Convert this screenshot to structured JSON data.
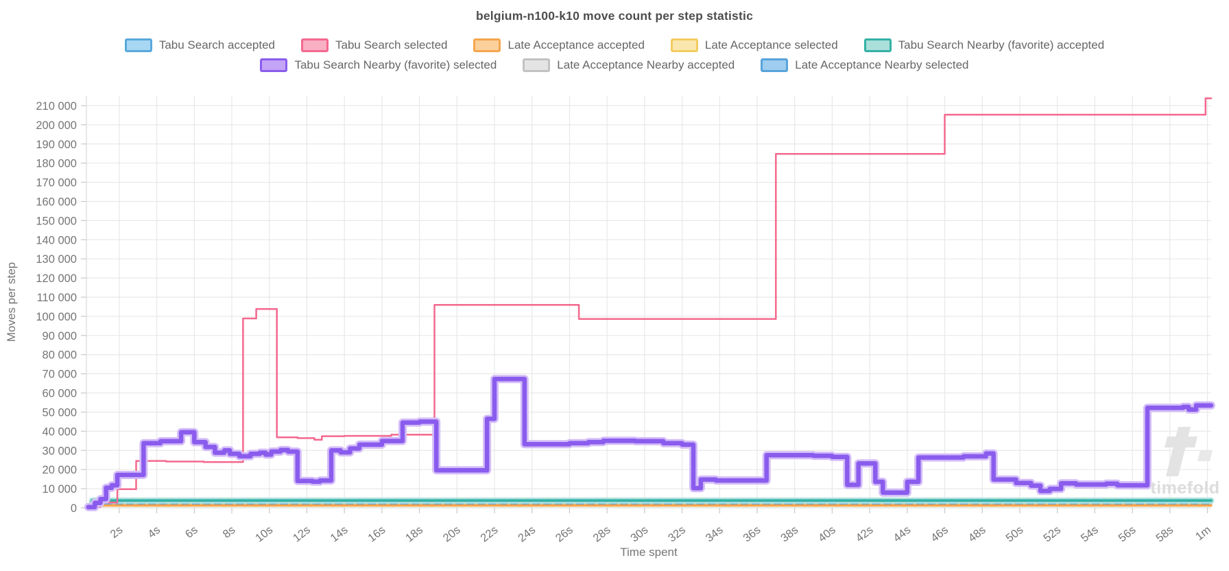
{
  "title": "belgium-n100-k10 move count per step statistic",
  "watermark": {
    "label": "timefold"
  },
  "legend": {
    "rows": [
      [
        0,
        1,
        2,
        3,
        4
      ],
      [
        5,
        6,
        7
      ]
    ]
  },
  "chart_data": {
    "type": "line",
    "subtype": "step-after",
    "title": "belgium-n100-k10 move count per step statistic",
    "xlabel": "Time spent",
    "ylabel": "Moves per step",
    "x_domain": [
      0.25,
      60.2
    ],
    "ylim": [
      0,
      215000
    ],
    "y_ticks": {
      "min": 0,
      "max": 210000,
      "step": 10000
    },
    "x_ticks": [
      {
        "v": 2,
        "label": "2s"
      },
      {
        "v": 4,
        "label": "4s"
      },
      {
        "v": 6,
        "label": "6s"
      },
      {
        "v": 8,
        "label": "8s"
      },
      {
        "v": 10,
        "label": "10s"
      },
      {
        "v": 12,
        "label": "12s"
      },
      {
        "v": 14,
        "label": "14s"
      },
      {
        "v": 16,
        "label": "16s"
      },
      {
        "v": 18,
        "label": "18s"
      },
      {
        "v": 20,
        "label": "20s"
      },
      {
        "v": 22,
        "label": "22s"
      },
      {
        "v": 24,
        "label": "24s"
      },
      {
        "v": 26,
        "label": "26s"
      },
      {
        "v": 28,
        "label": "28s"
      },
      {
        "v": 30,
        "label": "30s"
      },
      {
        "v": 32,
        "label": "32s"
      },
      {
        "v": 34,
        "label": "34s"
      },
      {
        "v": 36,
        "label": "36s"
      },
      {
        "v": 38,
        "label": "38s"
      },
      {
        "v": 40,
        "label": "40s"
      },
      {
        "v": 42,
        "label": "42s"
      },
      {
        "v": 44,
        "label": "44s"
      },
      {
        "v": 46,
        "label": "46s"
      },
      {
        "v": 48,
        "label": "48s"
      },
      {
        "v": 50,
        "label": "50s"
      },
      {
        "v": 52,
        "label": "52s"
      },
      {
        "v": 54,
        "label": "54s"
      },
      {
        "v": 56,
        "label": "56s"
      },
      {
        "v": 58,
        "label": "58s"
      },
      {
        "v": 60,
        "label": "1m"
      }
    ],
    "grid": true,
    "legend_position": "top",
    "series": [
      {
        "name": "Tabu Search accepted",
        "stroke": "#8ccdf2",
        "fill": "#a8d7f4",
        "border": "#58a8dc",
        "width": 6,
        "points": [
          [
            0.3,
            250
          ],
          [
            0.55,
            3800
          ],
          [
            60.2,
            3800
          ]
        ]
      },
      {
        "name": "Tabu Search selected",
        "stroke": "#f4688e",
        "fill": "#f9afc4",
        "border": "#f4688e",
        "width": 2.5,
        "points": [
          [
            0.4,
            500
          ],
          [
            1.0,
            2800
          ],
          [
            1.9,
            9800
          ],
          [
            2.9,
            24500
          ],
          [
            4.5,
            24200
          ],
          [
            6.5,
            23900
          ],
          [
            8.6,
            98900
          ],
          [
            9.3,
            103800
          ],
          [
            10.4,
            36800
          ],
          [
            11.5,
            36400
          ],
          [
            12.4,
            35600
          ],
          [
            12.8,
            37400
          ],
          [
            14.0,
            37600
          ],
          [
            16.5,
            38200
          ],
          [
            18.8,
            106000
          ],
          [
            26.5,
            98600
          ],
          [
            37.0,
            184800
          ],
          [
            46.0,
            205300
          ],
          [
            59.9,
            213800
          ],
          [
            60.2,
            213800
          ]
        ]
      },
      {
        "name": "Late Acceptance accepted",
        "stroke": "#f5a54e",
        "fill": "#fbd09b",
        "border": "#f5a54e",
        "width": 3.5,
        "points": [
          [
            0.3,
            150
          ],
          [
            0.55,
            1300
          ],
          [
            60.2,
            1300
          ]
        ]
      },
      {
        "name": "Late Acceptance selected",
        "stroke": "#f2cc60",
        "fill": "#fae7ae",
        "border": "#f2cc60",
        "width": 3,
        "points": [
          [
            0.3,
            100
          ],
          [
            0.55,
            1100
          ],
          [
            60.2,
            1100
          ]
        ]
      },
      {
        "name": "Tabu Search Nearby (favorite) accepted",
        "stroke": "#33b1a7",
        "fill": "#abdfda",
        "border": "#33b1a7",
        "width": 4,
        "halo": "#b5e2de",
        "halo_width": 9,
        "points": [
          [
            0.3,
            300
          ],
          [
            0.55,
            3800
          ],
          [
            60.2,
            3800
          ]
        ]
      },
      {
        "name": "Tabu Search Nearby (favorite) selected",
        "stroke": "#8a5ced",
        "fill": "#c3a4f7",
        "border": "#8a5ced",
        "width": 6.5,
        "halo": "#d4bdf8",
        "halo_width": 12,
        "points": [
          [
            0.35,
            400
          ],
          [
            0.7,
            2600
          ],
          [
            1.0,
            4600
          ],
          [
            1.3,
            10500
          ],
          [
            1.6,
            11800
          ],
          [
            1.9,
            17200
          ],
          [
            3.3,
            33800
          ],
          [
            4.2,
            34800
          ],
          [
            5.3,
            39500
          ],
          [
            6.0,
            34300
          ],
          [
            6.6,
            31800
          ],
          [
            7.1,
            28800
          ],
          [
            7.6,
            30000
          ],
          [
            7.9,
            28200
          ],
          [
            8.4,
            27000
          ],
          [
            9.0,
            28200
          ],
          [
            9.5,
            28800
          ],
          [
            9.8,
            27800
          ],
          [
            10.1,
            29400
          ],
          [
            10.6,
            30200
          ],
          [
            11.0,
            29400
          ],
          [
            11.5,
            14100
          ],
          [
            12.3,
            13700
          ],
          [
            12.7,
            14300
          ],
          [
            13.3,
            30000
          ],
          [
            13.8,
            29000
          ],
          [
            14.3,
            31000
          ],
          [
            14.8,
            33000
          ],
          [
            16.0,
            34900
          ],
          [
            17.1,
            44500
          ],
          [
            18.0,
            45000
          ],
          [
            18.9,
            19600
          ],
          [
            21.6,
            46500
          ],
          [
            22.0,
            67300
          ],
          [
            23.6,
            33200
          ],
          [
            26.0,
            33800
          ],
          [
            27.0,
            34300
          ],
          [
            27.8,
            35000
          ],
          [
            29.5,
            34800
          ],
          [
            31.0,
            33800
          ],
          [
            32.0,
            33000
          ],
          [
            32.6,
            10300
          ],
          [
            33.0,
            14800
          ],
          [
            33.8,
            14300
          ],
          [
            36.5,
            27500
          ],
          [
            39.0,
            27200
          ],
          [
            40.0,
            26600
          ],
          [
            40.8,
            12000
          ],
          [
            41.4,
            23200
          ],
          [
            42.3,
            13600
          ],
          [
            42.7,
            8000
          ],
          [
            44.0,
            13600
          ],
          [
            44.6,
            26300
          ],
          [
            47.0,
            26900
          ],
          [
            48.2,
            28400
          ],
          [
            48.6,
            14800
          ],
          [
            49.8,
            13000
          ],
          [
            50.6,
            11600
          ],
          [
            51.1,
            8800
          ],
          [
            51.6,
            9900
          ],
          [
            52.2,
            12800
          ],
          [
            53.0,
            12200
          ],
          [
            54.6,
            12600
          ],
          [
            55.2,
            11800
          ],
          [
            56.8,
            52200
          ],
          [
            58.7,
            52700
          ],
          [
            59.0,
            51300
          ],
          [
            59.4,
            53500
          ],
          [
            60.2,
            53500
          ]
        ]
      },
      {
        "name": "Late Acceptance Nearby accepted",
        "stroke": "#cccccc",
        "fill": "#e4e4e4",
        "border": "#c2c2c2",
        "width": 3,
        "points": [
          [
            0.3,
            120
          ],
          [
            0.55,
            2200
          ],
          [
            60.2,
            2200
          ]
        ]
      },
      {
        "name": "Late Acceptance Nearby selected",
        "stroke": "#58a3da",
        "fill": "#9fcdf0",
        "border": "#58a3da",
        "width": 3.5,
        "dash": "9 7",
        "points": [
          [
            0.3,
            200
          ],
          [
            0.55,
            2400
          ],
          [
            60.2,
            2400
          ]
        ]
      }
    ]
  }
}
